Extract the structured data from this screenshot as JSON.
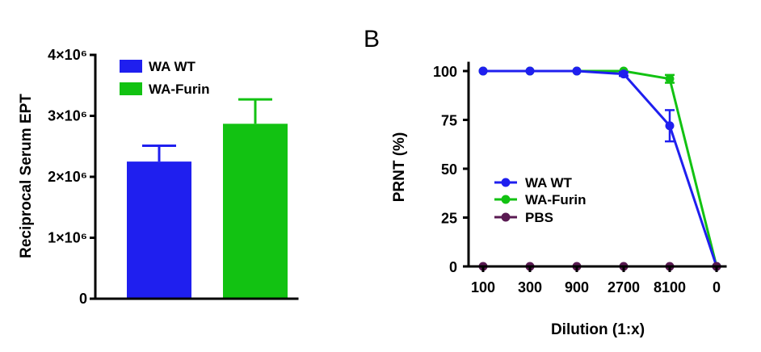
{
  "chart_data": [
    {
      "type": "bar",
      "title": "",
      "xlabel": "",
      "ylabel": "Reciprocal Serum EPT",
      "ylim": [
        0,
        4000000
      ],
      "yticks": [
        "0",
        "1×10⁶",
        "2×10⁶",
        "3×10⁶",
        "4×10⁶"
      ],
      "categories": [
        "WA WT",
        "WA-Furin"
      ],
      "values": [
        2250000,
        2870000
      ],
      "errors": [
        260000,
        400000
      ],
      "colors": [
        "#1f1fef",
        "#12c212"
      ],
      "legend": "top-left"
    },
    {
      "type": "line",
      "panel_label": "B",
      "title": "",
      "xlabel": "Dilution (1:x)",
      "ylabel": "PRNT (%)",
      "ylim": [
        0,
        100
      ],
      "yticks": [
        "0",
        "25",
        "50",
        "75",
        "100"
      ],
      "categories": [
        "100",
        "300",
        "900",
        "2700",
        "8100",
        "0"
      ],
      "series": [
        {
          "name": "WA WT",
          "color": "#1f1fef",
          "values": [
            100,
            100,
            100,
            98.5,
            72,
            0
          ],
          "errors": [
            0,
            0,
            0,
            1,
            8,
            0
          ]
        },
        {
          "name": "WA-Furin",
          "color": "#12c212",
          "values": [
            100,
            100,
            100,
            100,
            96,
            0
          ],
          "errors": [
            0,
            0,
            0,
            0,
            2,
            0
          ]
        },
        {
          "name": "PBS",
          "color": "#5a1a52",
          "values": [
            0,
            0,
            0,
            0,
            0,
            0
          ],
          "errors": [
            0,
            0,
            0,
            0,
            0,
            0
          ]
        }
      ],
      "legend": "center-left"
    }
  ]
}
